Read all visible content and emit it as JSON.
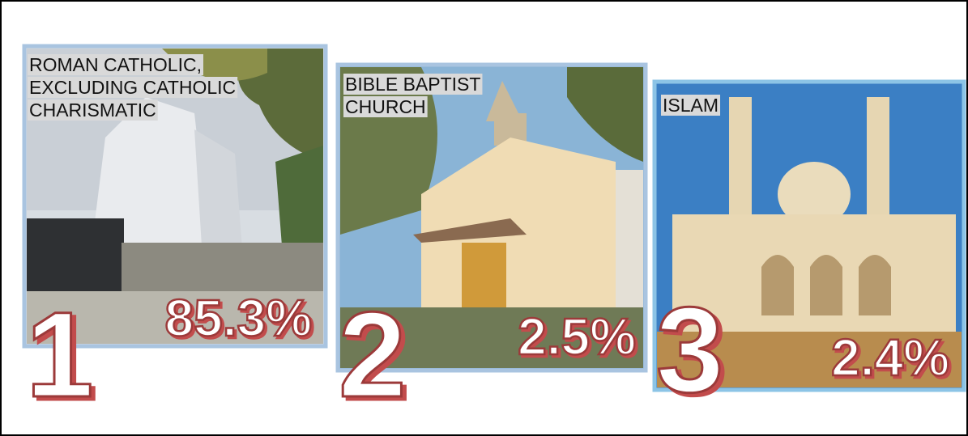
{
  "items": [
    {
      "rank": 1,
      "label_lines": [
        "ROMAN CATHOLIC,",
        "EXCLUDING CATHOLIC",
        "CHARISMATIC"
      ],
      "share": "85.3%"
    },
    {
      "rank": 2,
      "label_lines": [
        "BIBLE BAPTIST",
        "CHURCH"
      ],
      "share": "2.5%"
    },
    {
      "rank": 3,
      "label_lines": [
        "ISLAM"
      ],
      "share": "2.4%"
    }
  ]
}
